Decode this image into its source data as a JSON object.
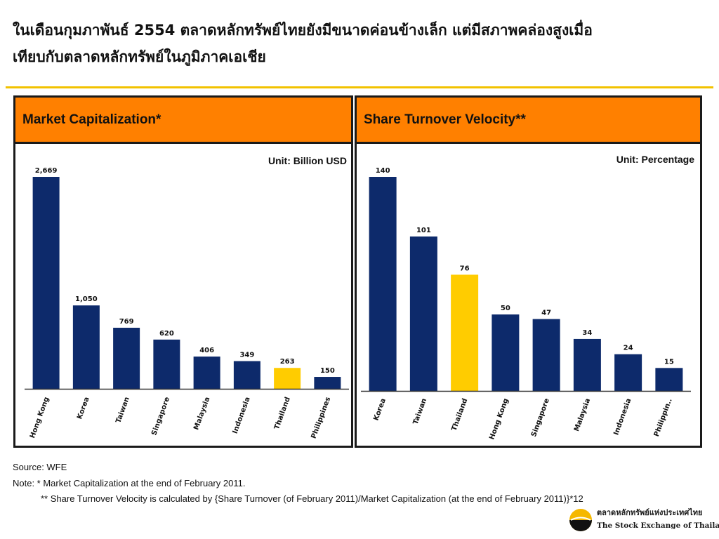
{
  "title": {
    "line1": "ในเดือนกุมภาพันธ์ 2554 ตลาดหลักทรัพย์ไทยยังมีขนาดค่อนข้างเล็ก  แต่มีสภาพคล่องสูงเมื่อ",
    "line2": "เทียบกับตลาดหลักทรัพย์ในภูมิภาคเอเชีย"
  },
  "colors": {
    "navy": "#0d2a6b",
    "highlight": "#ffcc00",
    "header": "#ff8000",
    "rule": "#f2c200"
  },
  "chart_data": [
    {
      "type": "bar",
      "title": "Market Capitalization*",
      "unit": "Unit: Billion USD",
      "categories": [
        "Hong Kong",
        "Korea",
        "Taiwan",
        "Singapore",
        "Malaysia",
        "Indonesia",
        "Thailand",
        "Philippines"
      ],
      "values": [
        2669,
        1050,
        769,
        620,
        406,
        349,
        263,
        150
      ],
      "value_labels": [
        "2,669",
        "1,050",
        "769",
        "620",
        "406",
        "349",
        "263",
        "150"
      ],
      "highlight": "Thailand",
      "ylim": [
        0,
        2669
      ],
      "grid": false
    },
    {
      "type": "bar",
      "title": "Share Turnover Velocity**",
      "unit": "Unit: Percentage",
      "categories": [
        "Korea",
        "Taiwan",
        "Thailand",
        "Hong Kong",
        "Singapore",
        "Malaysia",
        "Indonesia",
        "Philippin.."
      ],
      "values": [
        140,
        101,
        76,
        50,
        47,
        34,
        24,
        15
      ],
      "value_labels": [
        "140",
        "101",
        "76",
        "50",
        "47",
        "34",
        "24",
        "15"
      ],
      "highlight": "Thailand",
      "ylim": [
        0,
        140
      ],
      "grid": false
    }
  ],
  "notes": {
    "source": "Source: WFE",
    "note1": "Note: *  Market Capitalization at the end of February 2011.",
    "note2": "** Share Turnover Velocity is calculated by {Share Turnover (of February 2011)/Market Capitalization (at the end of February 2011)}*12"
  },
  "logo": {
    "thai": "ตลาดหลักทรัพย์แห่งประเทศไทย",
    "english": "The Stock Exchange of Thailand"
  }
}
